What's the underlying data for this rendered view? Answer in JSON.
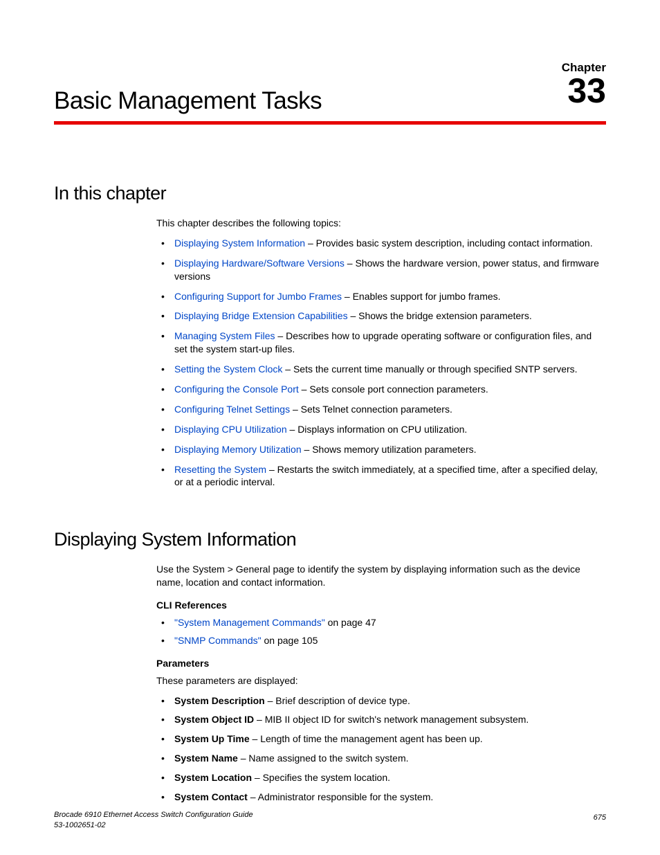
{
  "chapter_label": "Chapter",
  "chapter_number": "33",
  "title": "Basic Management Tasks",
  "rule_color": "#e60000",
  "link_color": "#0046c8",
  "section1": {
    "heading": "In this chapter",
    "intro": "This chapter describes the following topics:",
    "topics": [
      {
        "link": "Displaying System Information",
        "desc": " – Provides basic system description, including contact information."
      },
      {
        "link": "Displaying Hardware/Software Versions",
        "desc": " – Shows the hardware version, power status, and firmware versions"
      },
      {
        "link": "Configuring Support for Jumbo Frames",
        "desc": " – Enables support for jumbo frames."
      },
      {
        "link": "Displaying Bridge Extension Capabilities",
        "desc": " – Shows the bridge extension parameters."
      },
      {
        "link": "Managing System Files",
        "desc": " – Describes how to upgrade operating software or configuration files, and set the system start-up files."
      },
      {
        "link": "Setting the System Clock",
        "desc": " – Sets the current time manually or through specified SNTP servers."
      },
      {
        "link": "Configuring the Console Port",
        "desc": " – Sets console port connection parameters."
      },
      {
        "link": "Configuring Telnet Settings",
        "desc": " – Sets Telnet connection parameters."
      },
      {
        "link": "Displaying CPU Utilization",
        "desc": " – Displays information on CPU utilization."
      },
      {
        "link": "Displaying Memory Utilization",
        "desc": " – Shows memory utilization parameters."
      },
      {
        "link": "Resetting the System",
        "desc": " – Restarts the switch immediately, at a specified time, after a specified delay, or at a periodic interval."
      }
    ]
  },
  "section2": {
    "heading": "Displaying System Information",
    "intro": "Use the System > General page to identify the system by displaying information such as the device name, location and contact information.",
    "cli_heading": "CLI References",
    "cli_refs": [
      {
        "link": "\"System Management Commands\"",
        "desc": " on page 47"
      },
      {
        "link": "\"SNMP Commands\"",
        "desc": " on page 105"
      }
    ],
    "params_heading": "Parameters",
    "params_intro": "These parameters are displayed:",
    "params": [
      {
        "name": "System Description",
        "desc": " – Brief description of device type."
      },
      {
        "name": "System Object ID",
        "desc": " – MIB II object ID for switch's network management subsystem."
      },
      {
        "name": "System Up Time",
        "desc": " – Length of time the management agent has been up."
      },
      {
        "name": "System Name",
        "desc": " – Name assigned to the switch system."
      },
      {
        "name": "System Location",
        "desc": " – Specifies the system location."
      },
      {
        "name": "System Contact",
        "desc": " – Administrator responsible for the system."
      }
    ]
  },
  "footer": {
    "line1": "Brocade 6910 Ethernet Access Switch Configuration Guide",
    "line2": "53-1002651-02",
    "page": "675"
  }
}
